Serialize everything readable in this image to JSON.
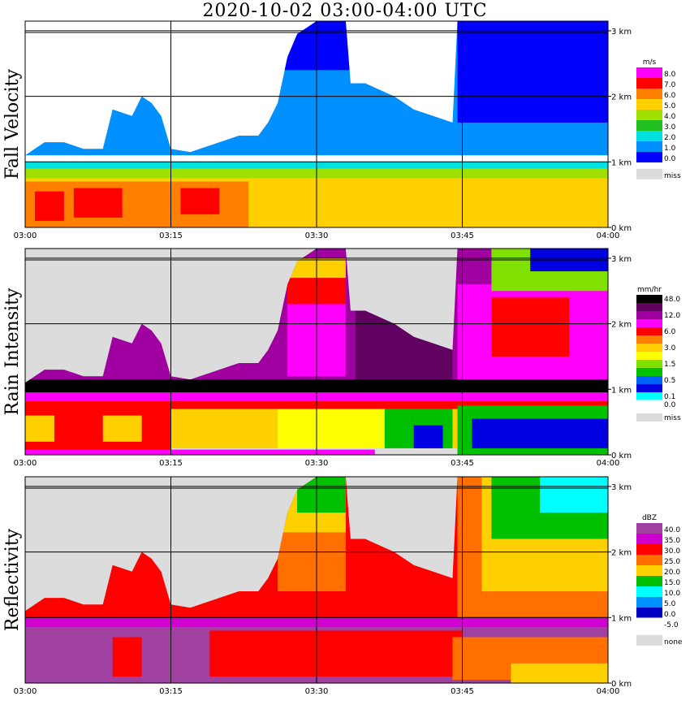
{
  "title": "2020-10-02   03:00-04:00 UTC",
  "time_ticks": [
    "03:00",
    "03:15",
    "03:30",
    "03:45",
    "04:00"
  ],
  "height_ticks": [
    "0 km",
    "1 km",
    "2 km",
    "3 km"
  ],
  "colors": {
    "missing": "#dcdcdc",
    "grid": "#000000"
  },
  "chart_data": [
    {
      "type": "heatmap",
      "ylabel": "Fall Velocity",
      "xlim": [
        "03:00",
        "04:00"
      ],
      "ylim_km": [
        0,
        3.2
      ],
      "unit": "m/s",
      "legend": [
        {
          "label": "8.0",
          "color": "#ff00ff"
        },
        {
          "label": "7.0",
          "color": "#ff0000"
        },
        {
          "label": "6.0",
          "color": "#ff8000"
        },
        {
          "label": "5.0",
          "color": "#ffd000"
        },
        {
          "label": "4.0",
          "color": "#a0e000"
        },
        {
          "label": "3.0",
          "color": "#20c020"
        },
        {
          "label": "2.0",
          "color": "#00e0e0"
        },
        {
          "label": "1.0",
          "color": "#0090ff"
        },
        {
          "label": "0.0",
          "color": "#0000ff"
        },
        {
          "label": "miss",
          "color": "#dcdcdc"
        }
      ],
      "background": "#ffffff",
      "echo_top_km": [
        [
          0,
          1.1
        ],
        [
          2,
          1.3
        ],
        [
          4,
          1.3
        ],
        [
          6,
          1.2
        ],
        [
          8,
          1.2
        ],
        [
          9,
          1.8
        ],
        [
          11,
          1.7
        ],
        [
          12,
          2.0
        ],
        [
          13,
          1.9
        ],
        [
          14,
          1.7
        ],
        [
          15,
          1.2
        ],
        [
          17,
          1.15
        ],
        [
          20,
          1.3
        ],
        [
          22,
          1.4
        ],
        [
          24,
          1.4
        ],
        [
          25,
          1.6
        ],
        [
          26,
          1.9
        ],
        [
          27,
          2.6
        ],
        [
          28,
          2.95
        ],
        [
          30,
          3.2
        ],
        [
          33,
          3.2
        ],
        [
          33.5,
          2.2
        ],
        [
          35,
          2.2
        ],
        [
          38,
          2.0
        ],
        [
          40,
          1.8
        ],
        [
          42,
          1.7
        ],
        [
          44,
          1.6
        ],
        [
          44.5,
          3.2
        ],
        [
          60,
          3.2
        ]
      ],
      "bands": [
        {
          "color": "#0090ff",
          "from_km": 1.1,
          "to_km": "top"
        },
        {
          "color": "#0000ff",
          "from_km": 2.4,
          "to_km": "top",
          "start_min": 26,
          "end_min": 34
        },
        {
          "color": "#0000ff",
          "from_km": 1.6,
          "to_km": "top",
          "start_min": 44.5,
          "end_min": 60
        },
        {
          "color": "#00e0e0",
          "from_km": 0.88,
          "to_km": 1.0
        },
        {
          "color": "#a0e000",
          "from_km": 0.75,
          "to_km": 0.9
        },
        {
          "color": "#ffd000",
          "from_km": 0.0,
          "to_km": 0.75
        },
        {
          "color": "#ff8000",
          "from_km": 0.0,
          "to_km": 0.7,
          "start_min": 0,
          "end_min": 23
        },
        {
          "color": "#ff0000",
          "from_km": 0.1,
          "to_km": 0.55,
          "start_min": 1,
          "end_min": 4
        },
        {
          "color": "#ff0000",
          "from_km": 0.15,
          "to_km": 0.6,
          "start_min": 5,
          "end_min": 10
        },
        {
          "color": "#ff0000",
          "from_km": 0.2,
          "to_km": 0.6,
          "start_min": 16,
          "end_min": 20
        }
      ]
    },
    {
      "type": "heatmap",
      "ylabel": "Rain Intensity",
      "xlim": [
        "03:00",
        "04:00"
      ],
      "ylim_km": [
        0,
        3.2
      ],
      "unit": "mm/hr",
      "legend": [
        {
          "label": "48.0",
          "color": "#000000"
        },
        {
          "label": "",
          "color": "#600060"
        },
        {
          "label": "12.0",
          "color": "#a000a0"
        },
        {
          "label": "",
          "color": "#ff00ff"
        },
        {
          "label": "6.0",
          "color": "#ff0000"
        },
        {
          "label": "",
          "color": "#ff8000"
        },
        {
          "label": "3.0",
          "color": "#ffd000"
        },
        {
          "label": "",
          "color": "#ffff00"
        },
        {
          "label": "1.5",
          "color": "#80e000"
        },
        {
          "label": "",
          "color": "#00c000"
        },
        {
          "label": "0.5",
          "color": "#0060ff"
        },
        {
          "label": "",
          "color": "#0000e0"
        },
        {
          "label": "0.1",
          "color": "#00ffff"
        },
        {
          "label": "0.0",
          "color": "#ffffff"
        },
        {
          "label": "miss",
          "color": "#dcdcdc"
        }
      ],
      "background": "#dcdcdc",
      "echo_top_km": [
        [
          0,
          1.1
        ],
        [
          2,
          1.3
        ],
        [
          4,
          1.3
        ],
        [
          6,
          1.2
        ],
        [
          8,
          1.2
        ],
        [
          9,
          1.8
        ],
        [
          11,
          1.7
        ],
        [
          12,
          2.0
        ],
        [
          13,
          1.9
        ],
        [
          14,
          1.7
        ],
        [
          15,
          1.2
        ],
        [
          17,
          1.15
        ],
        [
          20,
          1.3
        ],
        [
          22,
          1.4
        ],
        [
          24,
          1.4
        ],
        [
          25,
          1.6
        ],
        [
          26,
          1.9
        ],
        [
          27,
          2.6
        ],
        [
          28,
          2.95
        ],
        [
          30,
          3.2
        ],
        [
          33,
          3.2
        ],
        [
          33.5,
          2.2
        ],
        [
          35,
          2.2
        ],
        [
          38,
          2.0
        ],
        [
          40,
          1.8
        ],
        [
          42,
          1.7
        ],
        [
          44,
          1.6
        ],
        [
          44.5,
          3.2
        ],
        [
          60,
          3.2
        ]
      ],
      "bands": [
        {
          "color": "#a000a0",
          "from_km": 1.0,
          "to_km": "top"
        },
        {
          "color": "#600060",
          "from_km": 1.0,
          "to_km": "top",
          "start_min": 34,
          "end_min": 44
        },
        {
          "color": "#ff00ff",
          "from_km": 1.2,
          "to_km": 2.4,
          "start_min": 27,
          "end_min": 33
        },
        {
          "color": "#ff0000",
          "from_km": 2.3,
          "to_km": 2.7,
          "start_min": 27,
          "end_min": 33
        },
        {
          "color": "#ffd000",
          "from_km": 2.7,
          "to_km": 3.0,
          "start_min": 27,
          "end_min": 33
        },
        {
          "color": "#ff00ff",
          "from_km": 1.1,
          "to_km": 2.6,
          "start_min": 44.5,
          "end_min": 60
        },
        {
          "color": "#ff0000",
          "from_km": 1.5,
          "to_km": 2.4,
          "start_min": 48,
          "end_min": 56
        },
        {
          "color": "#80e000",
          "from_km": 2.5,
          "to_km": 3.2,
          "start_min": 48,
          "end_min": 60
        },
        {
          "color": "#0000e0",
          "from_km": 2.8,
          "to_km": 3.2,
          "start_min": 52,
          "end_min": 60
        },
        {
          "color": "#000000",
          "from_km": 0.95,
          "to_km": 1.15
        },
        {
          "color": "#ff00ff",
          "from_km": 0.82,
          "to_km": 0.95
        },
        {
          "color": "#ff0000",
          "from_km": 0.7,
          "to_km": 0.82
        },
        {
          "color": "#ffd000",
          "from_km": 0.1,
          "to_km": 0.7
        },
        {
          "color": "#ff0000",
          "from_km": 0.0,
          "to_km": 0.7,
          "start_min": 0,
          "end_min": 15
        },
        {
          "color": "#ffd000",
          "from_km": 0.2,
          "to_km": 0.6,
          "start_min": 0,
          "end_min": 3
        },
        {
          "color": "#ffd000",
          "from_km": 0.2,
          "to_km": 0.6,
          "start_min": 8,
          "end_min": 12
        },
        {
          "color": "#ffff00",
          "from_km": 0.1,
          "to_km": 0.7,
          "start_min": 26,
          "end_min": 38
        },
        {
          "color": "#00c000",
          "from_km": 0.1,
          "to_km": 0.7,
          "start_min": 37,
          "end_min": 44
        },
        {
          "color": "#0000e0",
          "from_km": 0.1,
          "to_km": 0.45,
          "start_min": 40,
          "end_min": 43
        },
        {
          "color": "#00c000",
          "from_km": 0.0,
          "to_km": 0.75,
          "start_min": 44.5,
          "end_min": 60
        },
        {
          "color": "#0000e0",
          "from_km": 0.1,
          "to_km": 0.55,
          "start_min": 46,
          "end_min": 60
        },
        {
          "color": "#ff00ff",
          "from_km": 0.0,
          "to_km": 0.08,
          "start_min": 0,
          "end_min": 36
        }
      ]
    },
    {
      "type": "heatmap",
      "ylabel": "Reflectivity",
      "xlim": [
        "03:00",
        "04:00"
      ],
      "ylim_km": [
        0,
        3.2
      ],
      "unit": "dBZ",
      "legend": [
        {
          "label": "40.0",
          "color": "#a040a0"
        },
        {
          "label": "35.0",
          "color": "#d000d0"
        },
        {
          "label": "30.0",
          "color": "#ff0000"
        },
        {
          "label": "25.0",
          "color": "#ff7000"
        },
        {
          "label": "20.0",
          "color": "#ffd000"
        },
        {
          "label": "15.0",
          "color": "#00c000"
        },
        {
          "label": "10.0",
          "color": "#00ffff"
        },
        {
          "label": "5.0",
          "color": "#0090ff"
        },
        {
          "label": "0.0",
          "color": "#0000c0"
        },
        {
          "label": "-5.0",
          "color": "#ffffff"
        },
        {
          "label": "none",
          "color": "#dcdcdc"
        }
      ],
      "background": "#dcdcdc",
      "echo_top_km": [
        [
          0,
          1.1
        ],
        [
          2,
          1.3
        ],
        [
          4,
          1.3
        ],
        [
          6,
          1.2
        ],
        [
          8,
          1.2
        ],
        [
          9,
          1.8
        ],
        [
          11,
          1.7
        ],
        [
          12,
          2.0
        ],
        [
          13,
          1.9
        ],
        [
          14,
          1.7
        ],
        [
          15,
          1.2
        ],
        [
          17,
          1.15
        ],
        [
          20,
          1.3
        ],
        [
          22,
          1.4
        ],
        [
          24,
          1.4
        ],
        [
          25,
          1.6
        ],
        [
          26,
          1.9
        ],
        [
          27,
          2.6
        ],
        [
          28,
          2.95
        ],
        [
          30,
          3.2
        ],
        [
          33,
          3.2
        ],
        [
          33.5,
          2.2
        ],
        [
          35,
          2.2
        ],
        [
          38,
          2.0
        ],
        [
          40,
          1.8
        ],
        [
          42,
          1.7
        ],
        [
          44,
          1.6
        ],
        [
          44.5,
          3.2
        ],
        [
          60,
          3.2
        ]
      ],
      "bands": [
        {
          "color": "#ff0000",
          "from_km": 0.95,
          "to_km": "top"
        },
        {
          "color": "#ff7000",
          "from_km": 1.4,
          "to_km": "top",
          "start_min": 26,
          "end_min": 33
        },
        {
          "color": "#ffd000",
          "from_km": 2.3,
          "to_km": "top",
          "start_min": 26,
          "end_min": 33
        },
        {
          "color": "#00c000",
          "from_km": 2.6,
          "to_km": "top",
          "start_min": 28,
          "end_min": 33
        },
        {
          "color": "#ff7000",
          "from_km": 1.0,
          "to_km": "top",
          "start_min": 44.5,
          "end_min": 60
        },
        {
          "color": "#ffd000",
          "from_km": 1.4,
          "to_km": "top",
          "start_min": 47,
          "end_min": 60
        },
        {
          "color": "#00c000",
          "from_km": 2.2,
          "to_km": "top",
          "start_min": 48,
          "end_min": 60
        },
        {
          "color": "#00ffff",
          "from_km": 2.6,
          "to_km": "top",
          "start_min": 53,
          "end_min": 60
        },
        {
          "color": "#d000d0",
          "from_km": 0.85,
          "to_km": 1.0
        },
        {
          "color": "#a040a0",
          "from_km": 0.0,
          "to_km": 0.85
        },
        {
          "color": "#ff0000",
          "from_km": 0.1,
          "to_km": 0.7,
          "start_min": 9,
          "end_min": 12
        },
        {
          "color": "#ff0000",
          "from_km": 0.1,
          "to_km": 0.8,
          "start_min": 19,
          "end_min": 45
        },
        {
          "color": "#ff7000",
          "from_km": 0.05,
          "to_km": 0.7,
          "start_min": 44,
          "end_min": 60
        },
        {
          "color": "#ffd000",
          "from_km": 0.0,
          "to_km": 0.3,
          "start_min": 50,
          "end_min": 60
        }
      ]
    }
  ]
}
